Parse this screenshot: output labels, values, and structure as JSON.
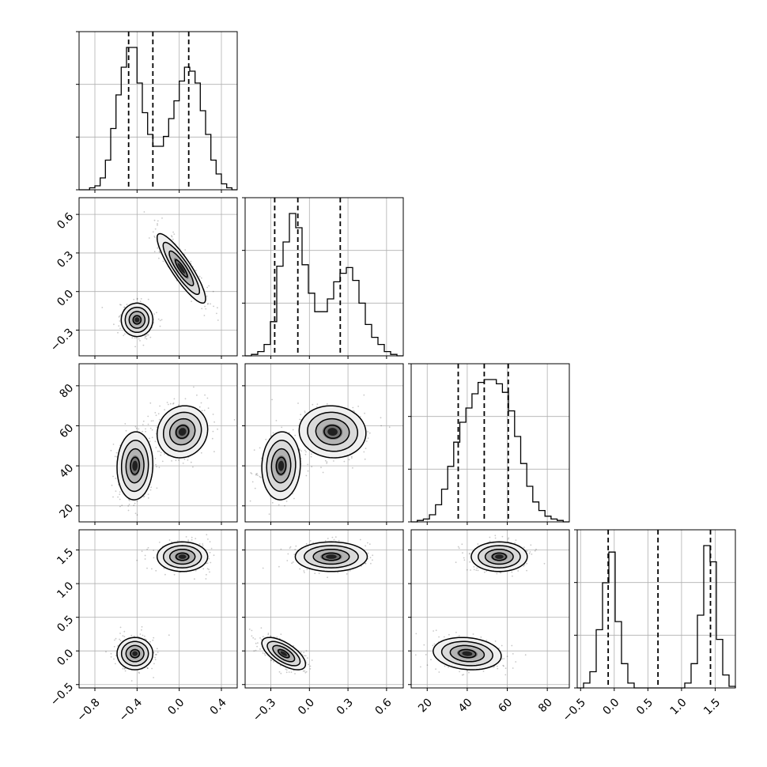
{
  "chart_data": {
    "type": "corner",
    "parameters": [
      {
        "range": [
          -0.95,
          0.55
        ],
        "ticks": [
          -0.8,
          -0.4,
          0.0,
          0.4
        ],
        "tick_labels": [
          "−0.8",
          "−0.4",
          "0.0",
          "0.4"
        ]
      },
      {
        "range": [
          -0.5,
          0.73
        ],
        "ticks": [
          -0.3,
          0.0,
          0.3,
          0.6
        ],
        "tick_labels": [
          "−0.3",
          "0.0",
          "0.3",
          "0.6"
        ]
      },
      {
        "range": [
          12,
          91
        ],
        "ticks": [
          20,
          40,
          60,
          80
        ],
        "tick_labels": [
          "20",
          "40",
          "60",
          "80"
        ]
      },
      {
        "range": [
          -0.55,
          1.8
        ],
        "ticks": [
          -0.5,
          0.0,
          0.5,
          1.0,
          1.5
        ],
        "tick_labels": [
          "−0.5",
          "0.0",
          "0.5",
          "1.0",
          "1.5"
        ]
      }
    ],
    "histograms": [
      {
        "edges_range": [
          -0.95,
          0.55
        ],
        "counts": [
          0,
          0,
          1,
          2,
          6,
          15,
          31,
          48,
          62,
          72,
          72,
          54,
          39,
          28,
          22,
          22,
          27,
          36,
          45,
          55,
          62,
          60,
          54,
          40,
          28,
          15,
          8,
          3,
          1,
          0
        ],
        "quantiles": [
          -0.48,
          -0.25,
          0.09
        ]
      },
      {
        "edges_range": [
          -0.5,
          0.73
        ],
        "counts": [
          0,
          1,
          3,
          8,
          24,
          63,
          80,
          100,
          90,
          64,
          44,
          31,
          31,
          40,
          52,
          58,
          62,
          53,
          37,
          22,
          13,
          8,
          3,
          1,
          0
        ],
        "quantiles": [
          -0.27,
          -0.09,
          0.24
        ]
      },
      {
        "edges_range": [
          12,
          91
        ],
        "counts": [
          0,
          1,
          2,
          5,
          12,
          23,
          39,
          56,
          70,
          80,
          90,
          98,
          100,
          100,
          97,
          91,
          78,
          60,
          41,
          25,
          14,
          8,
          4,
          2,
          1,
          0
        ],
        "quantiles": [
          35.5,
          48.5,
          60.5
        ]
      },
      {
        "edges_range": [
          -0.55,
          1.8
        ],
        "counts": [
          0,
          3,
          10,
          36,
          65,
          84,
          41,
          15,
          3,
          0,
          0,
          0,
          0,
          0,
          0,
          0,
          0,
          3,
          15,
          45,
          88,
          78,
          30,
          8,
          1
        ],
        "quantiles": [
          -0.09,
          0.65,
          1.43
        ]
      }
    ],
    "pairs": [
      {
        "row": 1,
        "col": 0,
        "clusters": [
          {
            "mean": [
              -0.4,
              -0.22
            ],
            "sd": [
              0.075,
              0.065
            ],
            "rho": 0.0
          },
          {
            "mean": [
              0.02,
              0.18
            ],
            "sd": [
              0.115,
              0.135
            ],
            "rho": -0.88
          }
        ]
      },
      {
        "row": 2,
        "col": 0,
        "clusters": [
          {
            "mean": [
              -0.42,
              40
            ],
            "sd": [
              0.085,
              8.5
            ],
            "rho": 0.05
          },
          {
            "mean": [
              0.03,
              57
            ],
            "sd": [
              0.12,
              6.5
            ],
            "rho": 0.1
          }
        ]
      },
      {
        "row": 2,
        "col": 1,
        "clusters": [
          {
            "mean": [
              -0.22,
              40
            ],
            "sd": [
              0.075,
              8.5
            ],
            "rho": 0.05
          },
          {
            "mean": [
              0.18,
              57
            ],
            "sd": [
              0.13,
              6.5
            ],
            "rho": -0.05
          }
        ]
      },
      {
        "row": 3,
        "col": 0,
        "clusters": [
          {
            "mean": [
              -0.42,
              -0.04
            ],
            "sd": [
              0.085,
              0.12
            ],
            "rho": 0.0
          },
          {
            "mean": [
              0.03,
              1.4
            ],
            "sd": [
              0.12,
              0.11
            ],
            "rho": 0.0
          }
        ]
      },
      {
        "row": 3,
        "col": 1,
        "clusters": [
          {
            "mean": [
              -0.2,
              -0.04
            ],
            "sd": [
              0.085,
              0.12
            ],
            "rho": -0.65
          },
          {
            "mean": [
              0.17,
              1.4
            ],
            "sd": [
              0.14,
              0.11
            ],
            "rho": 0.0
          }
        ]
      },
      {
        "row": 3,
        "col": 2,
        "clusters": [
          {
            "mean": [
              40,
              -0.04
            ],
            "sd": [
              8.5,
              0.12
            ],
            "rho": -0.15
          },
          {
            "mean": [
              56,
              1.4
            ],
            "sd": [
              7,
              0.11
            ],
            "rho": 0.0
          }
        ]
      }
    ],
    "grid": true,
    "contour_levels": [
      0.5,
      1.0,
      1.5,
      2.0
    ]
  }
}
